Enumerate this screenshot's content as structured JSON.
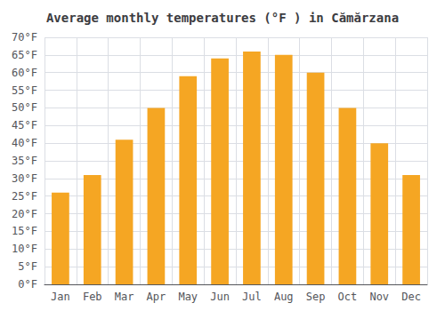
{
  "chart_data": {
    "type": "bar",
    "title": "Average monthly temperatures (°F ) in Cămărzana",
    "categories": [
      "Jan",
      "Feb",
      "Mar",
      "Apr",
      "May",
      "Jun",
      "Jul",
      "Aug",
      "Sep",
      "Oct",
      "Nov",
      "Dec"
    ],
    "values": [
      26,
      31,
      41,
      50,
      59,
      64,
      66,
      65,
      60,
      50,
      40,
      31
    ],
    "color": "#F5A623",
    "ylim": [
      0,
      70
    ],
    "yticks": [
      {
        "value": 0,
        "label": "0°F"
      },
      {
        "value": 5,
        "label": "5°F"
      },
      {
        "value": 10,
        "label": "10°F"
      },
      {
        "value": 15,
        "label": "15°F"
      },
      {
        "value": 20,
        "label": "20°F"
      },
      {
        "value": 25,
        "label": "25°F"
      },
      {
        "value": 30,
        "label": "30°F"
      },
      {
        "value": 35,
        "label": "35°F"
      },
      {
        "value": 40,
        "label": "40°F"
      },
      {
        "value": 45,
        "label": "45°F"
      },
      {
        "value": 50,
        "label": "50°F"
      },
      {
        "value": 55,
        "label": "55°F"
      },
      {
        "value": 60,
        "label": "60°F"
      },
      {
        "value": 65,
        "label": "65°F"
      },
      {
        "value": 70,
        "label": "70°F"
      }
    ],
    "grid": true
  }
}
